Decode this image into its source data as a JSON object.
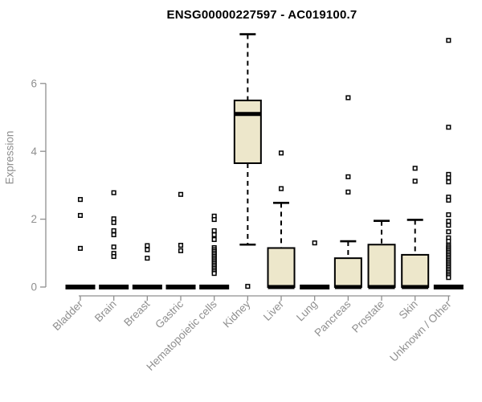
{
  "chart_data": {
    "type": "boxplot",
    "title": "ENSG00000227597 - AC019100.7",
    "ylabel": "Expression",
    "xlabel": "",
    "y_ticks": [
      0,
      2,
      4,
      6
    ],
    "ylim": [
      0,
      7.6
    ],
    "grid": false,
    "legend": false,
    "colors": {
      "box_fill": "#EDE7CB",
      "box_border": "#000000",
      "median": "#000000",
      "axis": "#8F8F8F",
      "tick_label": "#8F8F8F",
      "title": "#000000",
      "background": "#FFFFFF"
    },
    "x_tick_label_rotation": 45,
    "categories": [
      "Bladder",
      "Brain",
      "Breast",
      "Gastric",
      "Hematopoietic cells",
      "Kidney",
      "Liver",
      "Lung",
      "Pancreas",
      "Prostate",
      "Skin",
      "Unknown / Other"
    ],
    "boxes": [
      {
        "category": "Bladder",
        "q1": 0,
        "median": 0,
        "q3": 0,
        "whisker_low": 0,
        "whisker_high": 0,
        "outliers": [
          2.58,
          2.11,
          1.14
        ]
      },
      {
        "category": "Brain",
        "q1": 0,
        "median": 0,
        "q3": 0,
        "whisker_low": 0,
        "whisker_high": 0,
        "outliers": [
          2.78,
          2.01,
          1.9,
          1.66,
          1.54,
          1.18,
          0.99,
          0.9
        ]
      },
      {
        "category": "Breast",
        "q1": 0,
        "median": 0,
        "q3": 0,
        "whisker_low": 0,
        "whisker_high": 0,
        "outliers": [
          1.22,
          1.1,
          0.85
        ]
      },
      {
        "category": "Gastric",
        "q1": 0,
        "median": 0,
        "q3": 0,
        "whisker_low": 0,
        "whisker_high": 0,
        "outliers": [
          2.73,
          1.23,
          1.07
        ]
      },
      {
        "category": "Hematopoietic cells",
        "q1": 0,
        "median": 0,
        "q3": 0,
        "whisker_low": 0,
        "whisker_high": 0,
        "outliers": [
          2.09,
          1.99,
          1.66,
          1.54,
          1.4,
          1.16,
          1.1,
          1.05,
          1.0,
          0.95,
          0.9,
          0.85,
          0.8,
          0.75,
          0.7,
          0.65,
          0.6,
          0.55,
          0.5,
          0.45,
          0.4
        ]
      },
      {
        "category": "Kidney",
        "q1": 3.65,
        "median": 5.1,
        "q3": 5.5,
        "whisker_low": 1.25,
        "whisker_high": 7.45,
        "outliers": [
          0.02
        ]
      },
      {
        "category": "Liver",
        "q1": 0,
        "median": 0,
        "q3": 1.15,
        "whisker_low": 0,
        "whisker_high": 2.48,
        "outliers": [
          3.95,
          2.9
        ]
      },
      {
        "category": "Lung",
        "q1": 0,
        "median": 0,
        "q3": 0,
        "whisker_low": 0,
        "whisker_high": 0,
        "outliers": [
          1.3
        ]
      },
      {
        "category": "Pancreas",
        "q1": 0,
        "median": 0,
        "q3": 0.85,
        "whisker_low": 0,
        "whisker_high": 1.35,
        "outliers": [
          5.58,
          3.25,
          2.8
        ]
      },
      {
        "category": "Prostate",
        "q1": 0,
        "median": 0,
        "q3": 1.25,
        "whisker_low": 0,
        "whisker_high": 1.95,
        "outliers": []
      },
      {
        "category": "Skin",
        "q1": 0,
        "median": 0,
        "q3": 0.95,
        "whisker_low": 0,
        "whisker_high": 1.98,
        "outliers": [
          3.5,
          3.12
        ]
      },
      {
        "category": "Unknown / Other",
        "q1": 0,
        "median": 0,
        "q3": 0,
        "whisker_low": 0,
        "whisker_high": 0,
        "outliers": [
          7.27,
          4.71,
          3.32,
          3.22,
          3.1,
          2.65,
          2.56,
          2.13,
          1.94,
          1.82,
          1.63,
          1.45,
          1.35,
          1.23,
          1.18,
          1.13,
          1.08,
          1.03,
          0.98,
          0.93,
          0.88,
          0.83,
          0.78,
          0.73,
          0.68,
          0.63,
          0.58,
          0.53,
          0.48,
          0.43,
          0.38,
          0.33,
          0.28
        ]
      }
    ]
  }
}
